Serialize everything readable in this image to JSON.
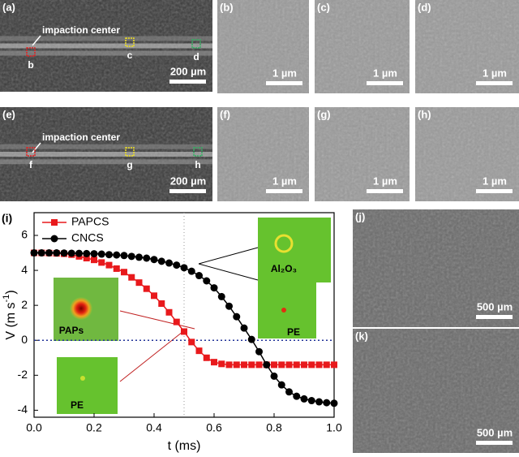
{
  "panels": [
    {
      "label": "(a)",
      "scale": "200 µm",
      "annotation": "impaction center",
      "markers": [
        "b",
        "c",
        "d"
      ]
    },
    {
      "label": "(b)",
      "scale": "1 µm"
    },
    {
      "label": "(c)",
      "scale": "1 µm"
    },
    {
      "label": "(d)",
      "scale": "1 µm"
    },
    {
      "label": "(e)",
      "scale": "200 µm",
      "annotation": "impaction center",
      "markers": [
        "f",
        "g",
        "h"
      ]
    },
    {
      "label": "(f)",
      "scale": "1 µm"
    },
    {
      "label": "(g)",
      "scale": "1 µm"
    },
    {
      "label": "(h)",
      "scale": "1 µm"
    },
    {
      "label": "(j)",
      "scale": "500 µm"
    },
    {
      "label": "(k)",
      "scale": "500 µm"
    }
  ],
  "chart_data": {
    "type": "line",
    "panel_label": "(i)",
    "x_label": "t (ms)",
    "y_label": "V (m s",
    "y_label_sup": "-1",
    "y_label_end": ")",
    "insets": [
      "Al₂O₃",
      "PE",
      "PAPs",
      "PE"
    ],
    "x": [
      0,
      0.025,
      0.05,
      0.075,
      0.1,
      0.125,
      0.15,
      0.175,
      0.2,
      0.225,
      0.25,
      0.275,
      0.3,
      0.325,
      0.35,
      0.375,
      0.4,
      0.425,
      0.45,
      0.475,
      0.5,
      0.525,
      0.55,
      0.575,
      0.6,
      0.625,
      0.65,
      0.675,
      0.7,
      0.725,
      0.75,
      0.775,
      0.8,
      0.825,
      0.85,
      0.875,
      0.9,
      0.925,
      0.95,
      0.975,
      1.0
    ],
    "series": [
      {
        "name": "PAPCS",
        "color": "#e8191c",
        "marker": "square",
        "values": [
          5.0,
          5.0,
          4.99,
          4.97,
          4.95,
          4.9,
          4.8,
          4.7,
          4.6,
          4.45,
          4.3,
          4.1,
          3.9,
          3.6,
          3.3,
          2.95,
          2.55,
          2.1,
          1.6,
          1.05,
          0.5,
          -0.1,
          -0.6,
          -1.0,
          -1.25,
          -1.35,
          -1.4,
          -1.4,
          -1.4,
          -1.4,
          -1.4,
          -1.4,
          -1.4,
          -1.4,
          -1.4,
          -1.4,
          -1.4,
          -1.4,
          -1.4,
          -1.4,
          -1.4
        ]
      },
      {
        "name": "CNCS",
        "color": "#000000",
        "marker": "circle",
        "values": [
          5.0,
          5.0,
          5.0,
          5.0,
          4.99,
          4.98,
          4.97,
          4.96,
          4.95,
          4.93,
          4.9,
          4.88,
          4.85,
          4.8,
          4.75,
          4.7,
          4.62,
          4.52,
          4.42,
          4.3,
          4.15,
          3.95,
          3.7,
          3.4,
          3.0,
          2.5,
          1.95,
          1.35,
          0.7,
          0.05,
          -0.65,
          -1.4,
          -2.05,
          -2.55,
          -2.95,
          -3.2,
          -3.35,
          -3.45,
          -3.52,
          -3.57,
          -3.6
        ]
      }
    ],
    "xlim": [
      0,
      1.0
    ],
    "ylim": [
      -4.4,
      7.3
    ],
    "xticks": [
      {
        "value": 0,
        "label": "0.0"
      },
      0.2,
      0.4,
      0.6,
      0.8,
      {
        "value": 1,
        "label": "1.0"
      }
    ],
    "yticks": [
      -4,
      -2,
      0,
      2,
      4,
      6
    ],
    "reference_y": 0,
    "reference_x": 0.5,
    "legend": "upper left"
  }
}
